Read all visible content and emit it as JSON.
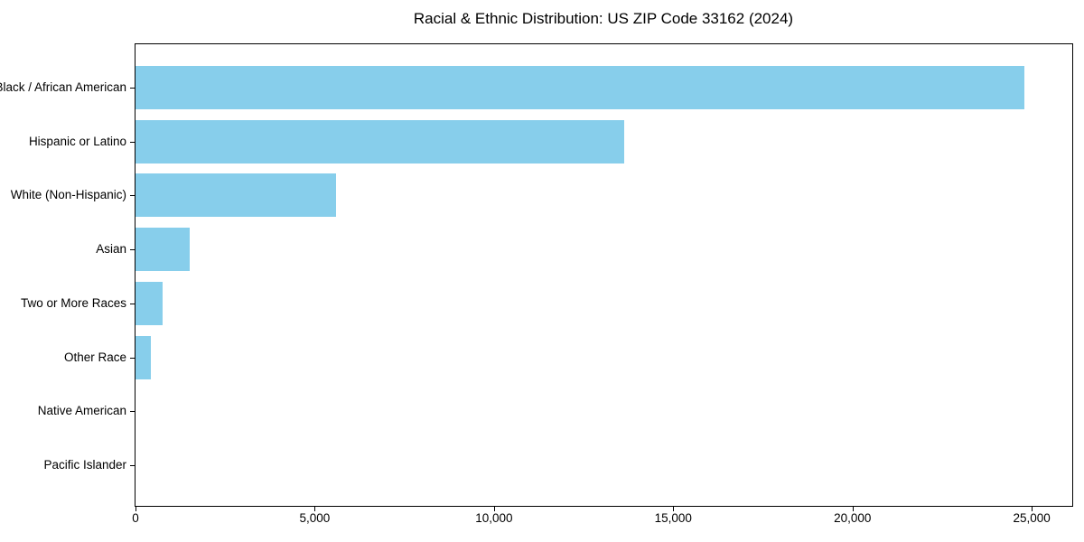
{
  "page": {
    "background_color": "#ffffff",
    "text_color": "#000000"
  },
  "chart_data": {
    "type": "bar",
    "orientation": "horizontal",
    "title": "Racial & Ethnic Distribution: US ZIP Code 33162 (2024)",
    "categories": [
      "Black / African American",
      "Hispanic or Latino",
      "White (Non-Hispanic)",
      "Asian",
      "Two or More Races",
      "Other Race",
      "Native American",
      "Pacific Islander"
    ],
    "values": [
      24800,
      13630,
      5600,
      1510,
      750,
      420,
      0,
      0
    ],
    "xlabel": "",
    "ylabel": "",
    "xlim": [
      0,
      26130
    ],
    "x_ticks": [
      0,
      5000,
      10000,
      15000,
      20000,
      25000
    ],
    "x_tick_labels": [
      "0",
      "5,000",
      "10,000",
      "15,000",
      "20,000",
      "25,000"
    ],
    "bar_color": "#87CEEB",
    "axis_color": "#000000",
    "grid": false,
    "legend": null
  }
}
